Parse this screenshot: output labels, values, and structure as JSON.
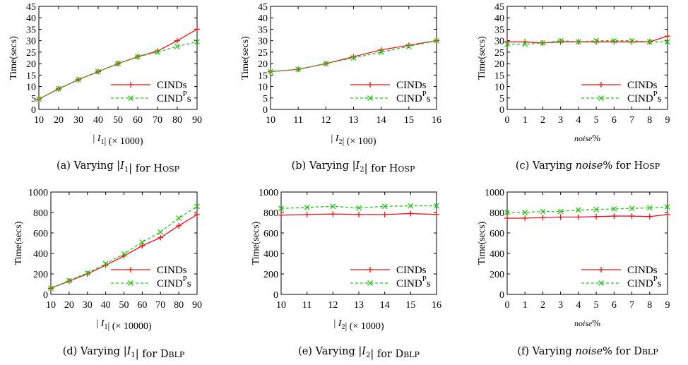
{
  "colors": {
    "cinds": "#e8161b",
    "cindp": "#25c416",
    "axis": "#000000"
  },
  "chart_data": [
    {
      "type": "line",
      "caption": "(a) Varying |I1| for Hosp",
      "xlabel": "| I1| (× 1000)",
      "ylabel": "Time(secs)",
      "x": [
        10,
        20,
        30,
        40,
        50,
        60,
        70,
        80,
        90
      ],
      "xticks": [
        "10",
        "20",
        "30",
        "40",
        "50",
        "60",
        "70",
        "80",
        "90"
      ],
      "yticks": [
        "0",
        "5",
        "10",
        "15",
        "20",
        "25",
        "30",
        "35",
        "40",
        "45"
      ],
      "xlim": [
        10,
        90
      ],
      "ylim": [
        0,
        45
      ],
      "legend": "lower-right",
      "series": [
        {
          "name": "CINDs",
          "values": [
            4.5,
            9,
            13,
            16.5,
            20,
            23,
            25.5,
            30,
            35
          ]
        },
        {
          "name": "CINDPs",
          "values": [
            4.5,
            9,
            13,
            16.5,
            20,
            23,
            25,
            27.5,
            29.5
          ]
        }
      ]
    },
    {
      "type": "line",
      "caption": "(b) Varying |I2| for Hosp",
      "xlabel": "| I2| (× 100)",
      "ylabel": "Time(secs)",
      "x": [
        10,
        11,
        12,
        13,
        14,
        15,
        16
      ],
      "xticks": [
        "10",
        "11",
        "12",
        "13",
        "14",
        "15",
        "16"
      ],
      "yticks": [
        "0",
        "5",
        "10",
        "15",
        "20",
        "25",
        "30",
        "35",
        "40",
        "45"
      ],
      "xlim": [
        10,
        16
      ],
      "ylim": [
        0,
        45
      ],
      "legend": "lower-right",
      "series": [
        {
          "name": "CINDs",
          "values": [
            16.5,
            17.5,
            20,
            23,
            26,
            28,
            30
          ]
        },
        {
          "name": "CINDPs",
          "values": [
            16.5,
            17.5,
            20,
            22.5,
            25,
            27.5,
            30
          ]
        }
      ]
    },
    {
      "type": "line",
      "caption": "(c) Varying noise% for Hosp",
      "xlabel": "noise%",
      "ylabel": "Time(secs)",
      "x": [
        0,
        1,
        2,
        3,
        4,
        5,
        6,
        7,
        8,
        9
      ],
      "xticks": [
        "0",
        "1",
        "2",
        "3",
        "4",
        "5",
        "6",
        "7",
        "8",
        "9"
      ],
      "yticks": [
        "0",
        "5",
        "10",
        "15",
        "20",
        "25",
        "30",
        "35",
        "40",
        "45"
      ],
      "xlim": [
        0,
        9
      ],
      "ylim": [
        0,
        45
      ],
      "legend": "lower-right",
      "series": [
        {
          "name": "CINDs",
          "values": [
            29.5,
            29.5,
            29,
            29.5,
            29.5,
            29.5,
            29.5,
            29.5,
            29.5,
            32
          ]
        },
        {
          "name": "CINDPs",
          "values": [
            28.5,
            28.5,
            29,
            30,
            29.5,
            30,
            30,
            30,
            29.5,
            29.5
          ]
        }
      ]
    },
    {
      "type": "line",
      "caption": "(d) Varying |I1| for DBLP",
      "xlabel": "| I1| (× 10000)",
      "ylabel": "Time(secs)",
      "x": [
        10,
        20,
        30,
        40,
        50,
        60,
        70,
        80,
        90
      ],
      "xticks": [
        "10",
        "20",
        "30",
        "40",
        "50",
        "60",
        "70",
        "80",
        "90"
      ],
      "yticks": [
        "0",
        "200",
        "400",
        "600",
        "800",
        "1000"
      ],
      "xlim": [
        10,
        90
      ],
      "ylim": [
        0,
        1000
      ],
      "legend": "lower-right",
      "series": [
        {
          "name": "CINDs",
          "values": [
            60,
            130,
            200,
            285,
            375,
            475,
            555,
            670,
            780
          ]
        },
        {
          "name": "CINDPs",
          "values": [
            60,
            135,
            210,
            300,
            395,
            510,
            610,
            745,
            860
          ]
        }
      ]
    },
    {
      "type": "line",
      "caption": "(e) Varying |I2| for DBLP",
      "xlabel": "| I2| (× 1000)",
      "ylabel": "Time(secs)",
      "x": [
        10,
        11,
        12,
        13,
        14,
        15,
        16
      ],
      "xticks": [
        "10",
        "11",
        "12",
        "13",
        "14",
        "15",
        "16"
      ],
      "yticks": [
        "0",
        "200",
        "400",
        "600",
        "800",
        "1000"
      ],
      "xlim": [
        10,
        16
      ],
      "ylim": [
        0,
        1000
      ],
      "legend": "lower-right",
      "series": [
        {
          "name": "CINDs",
          "values": [
            775,
            780,
            785,
            780,
            780,
            790,
            780
          ]
        },
        {
          "name": "CINDPs",
          "values": [
            840,
            850,
            860,
            845,
            860,
            865,
            865
          ]
        }
      ]
    },
    {
      "type": "line",
      "caption": "(f) Varying noise% for DBLP",
      "xlabel": "noise%",
      "ylabel": "Time(secs)",
      "x": [
        0,
        1,
        2,
        3,
        4,
        5,
        6,
        7,
        8,
        9
      ],
      "xticks": [
        "0",
        "1",
        "2",
        "3",
        "4",
        "5",
        "6",
        "7",
        "8",
        "9"
      ],
      "yticks": [
        "0",
        "200",
        "400",
        "600",
        "800",
        "1000"
      ],
      "xlim": [
        0,
        9
      ],
      "ylim": [
        0,
        1000
      ],
      "legend": "lower-right",
      "series": [
        {
          "name": "CINDs",
          "values": [
            745,
            745,
            750,
            755,
            755,
            760,
            765,
            765,
            760,
            780
          ]
        },
        {
          "name": "CINDPs",
          "values": [
            800,
            800,
            810,
            810,
            825,
            830,
            835,
            840,
            845,
            855
          ]
        }
      ]
    }
  ]
}
